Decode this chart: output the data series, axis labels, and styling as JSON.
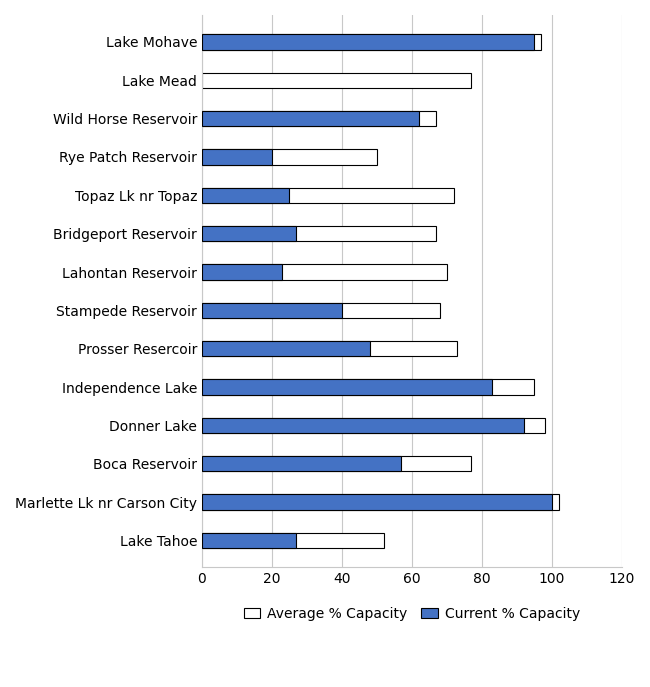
{
  "reservoirs": [
    "Lake Tahoe",
    "Marlette Lk nr Carson City",
    "Boca Reservoir",
    "Donner Lake",
    "Independence Lake",
    "Prosser Resercoir",
    "Stampede Reservoir",
    "Lahontan Reservoir",
    "Bridgeport Reservoir",
    "Topaz Lk nr Topaz",
    "Rye Patch Reservoir",
    "Wild Horse Reservoir",
    "Lake Mead",
    "Lake Mohave"
  ],
  "average_capacity": [
    52,
    102,
    77,
    98,
    95,
    73,
    68,
    70,
    67,
    72,
    50,
    67,
    77,
    97
  ],
  "current_capacity": [
    27,
    100,
    57,
    92,
    83,
    48,
    40,
    23,
    27,
    25,
    20,
    62,
    null,
    95
  ],
  "avg_color": "#ffffff",
  "avg_edgecolor": "#000000",
  "current_color": "#4472c4",
  "current_edgecolor": "#000000",
  "background_color": "#ffffff",
  "xlim": [
    0,
    120
  ],
  "xticks": [
    0,
    20,
    40,
    60,
    80,
    100,
    120
  ],
  "legend_avg_label": "Average % Capacity",
  "legend_current_label": "Current % Capacity",
  "bar_height": 0.4,
  "grid_color": "#c8c8c8"
}
